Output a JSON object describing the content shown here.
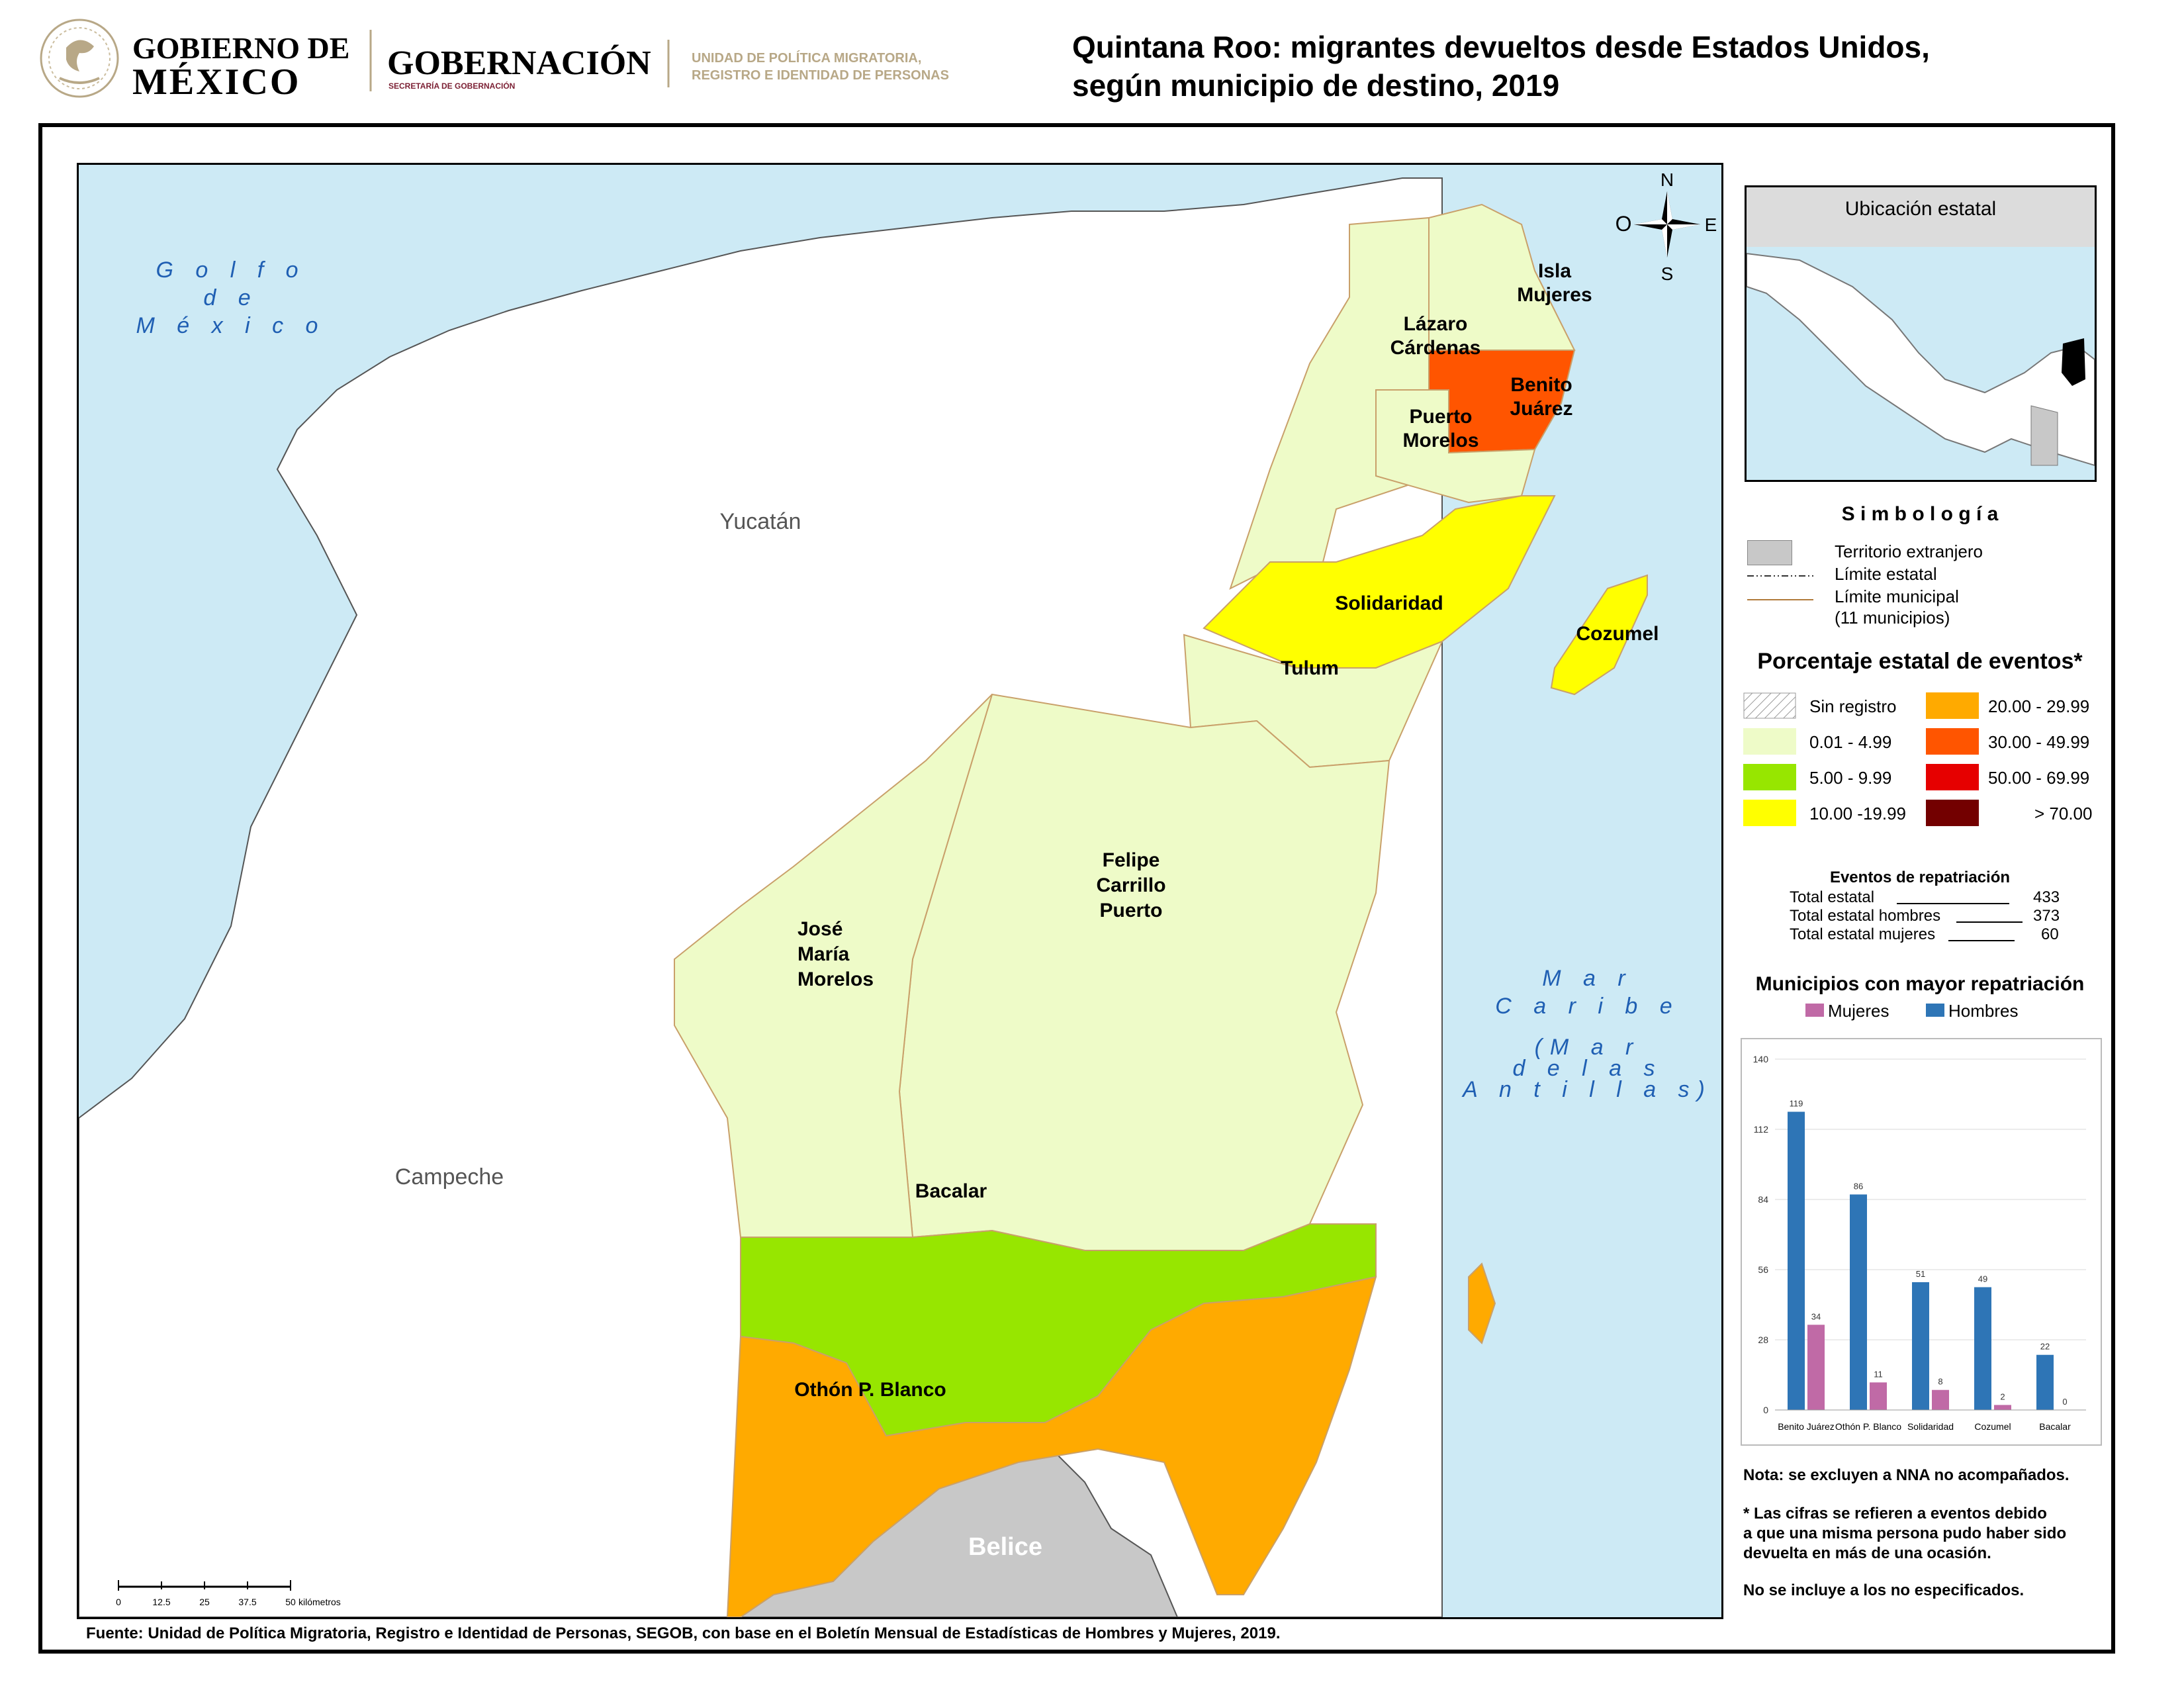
{
  "header": {
    "gob_line1": "GOBIERNO DE",
    "gob_line2": "MÉXICO",
    "dependency": "GOBERNACIÓN",
    "dependency_sub": "SECRETARÍA DE GOBERNACIÓN",
    "unit_line1": "UNIDAD DE POLÍTICA MIGRATORIA,",
    "unit_line2": "REGISTRO E IDENTIDAD DE PERSONAS"
  },
  "title": {
    "line1": "Quintana Roo: migrantes devueltos desde Estados Unidos,",
    "line2": "según municipio de destino, 2019"
  },
  "map": {
    "seas": {
      "golfo": [
        "G o l f o",
        "d e",
        "M é x i c o"
      ],
      "caribe": [
        "M a r",
        "C a r i b e",
        "(M a r",
        "d e  l a s",
        "A n t i l l a s)"
      ]
    },
    "states": {
      "yucatan": "Yucatán",
      "campeche": "Campeche",
      "belice": "Belice"
    },
    "municipalities": {
      "isla_mujeres": [
        "Isla",
        "Mujeres"
      ],
      "lazaro_cardenas": [
        "Lázaro",
        "Cárdenas"
      ],
      "benito_juarez": [
        "Benito",
        "Juárez"
      ],
      "puerto_morelos": [
        "Puerto",
        "Morelos"
      ],
      "solidaridad": "Solidaridad",
      "cozumel": "Cozumel",
      "tulum": "Tulum",
      "felipe_carrillo_puerto": [
        "Felipe",
        "Carrillo",
        "Puerto"
      ],
      "jose_maria_morelos": [
        "José",
        "María",
        "Morelos"
      ],
      "bacalar": "Bacalar",
      "othon_p_blanco": "Othón P. Blanco"
    },
    "compass": {
      "n": "N",
      "s": "S",
      "e": "E",
      "o": "O"
    },
    "scale": {
      "ticks": [
        "0",
        "12.5",
        "25",
        "37.5",
        "50"
      ],
      "unit": "kilómetros"
    },
    "colors": {
      "sea": "#cdeaf5",
      "land_other": "#ffffff",
      "foreign": "#c8c8c8",
      "c_0_5": "#eefbc8",
      "c_5_10": "#97e600",
      "c_10_20": "#ffff00",
      "c_20_30": "#ffaa00",
      "c_30_50": "#ff5500",
      "c_50_70": "#e60000",
      "c_70": "#730000"
    }
  },
  "location": {
    "title": "Ubicación estatal"
  },
  "symbology": {
    "title": "S i m b o l o g í a",
    "items": [
      "Territorio extranjero",
      "Límite estatal",
      "Límite municipal",
      "(11 municipios)"
    ]
  },
  "percentage": {
    "title": "Porcentaje estatal de eventos*",
    "left": [
      "Sin registro",
      "0.01  - 4.99",
      "5.00  - 9.99",
      "10.00 -19.99"
    ],
    "right": [
      "20.00 - 29.99",
      "30.00 - 49.99",
      "50.00 - 69.99",
      "> 70.00"
    ]
  },
  "events": {
    "title": "Eventos de repatriación",
    "rows": [
      {
        "label": "Total estatal",
        "value": "433"
      },
      {
        "label": "Total estatal hombres",
        "value": "373"
      },
      {
        "label": "Total estatal mujeres",
        "value": "60"
      }
    ]
  },
  "chart_data": {
    "type": "bar",
    "title": "Municipios con mayor repatriación",
    "categories": [
      "Benito Juárez",
      "Othón P. Blanco",
      "Solidaridad",
      "Cozumel",
      "Bacalar"
    ],
    "series": [
      {
        "name": "Hombres",
        "values": [
          119,
          86,
          51,
          49,
          22
        ],
        "color": "#2e75b6"
      },
      {
        "name": "Mujeres",
        "values": [
          34,
          11,
          8,
          2,
          0
        ],
        "color": "#c06aa6"
      }
    ],
    "legend_order": [
      "Mujeres",
      "Hombres"
    ],
    "yticks": [
      "0",
      "28",
      "56",
      "84",
      "112",
      "140"
    ],
    "ylim": [
      0,
      140
    ],
    "grid": true,
    "legend_position": "top"
  },
  "notes": {
    "n1": "Nota: se excluyen a NNA no acompañados.",
    "n2": [
      "* Las cifras se refieren a eventos debido",
      "a que una misma persona pudo haber sido",
      "devuelta en más de una ocasión."
    ],
    "n3": "No se incluye a los no especificados."
  },
  "footer": "Fuente: Unidad de Política Migratoria, Registro e Identidad de Personas, SEGOB, con base en el Boletín Mensual de Estadísticas de Hombres y Mujeres, 2019."
}
